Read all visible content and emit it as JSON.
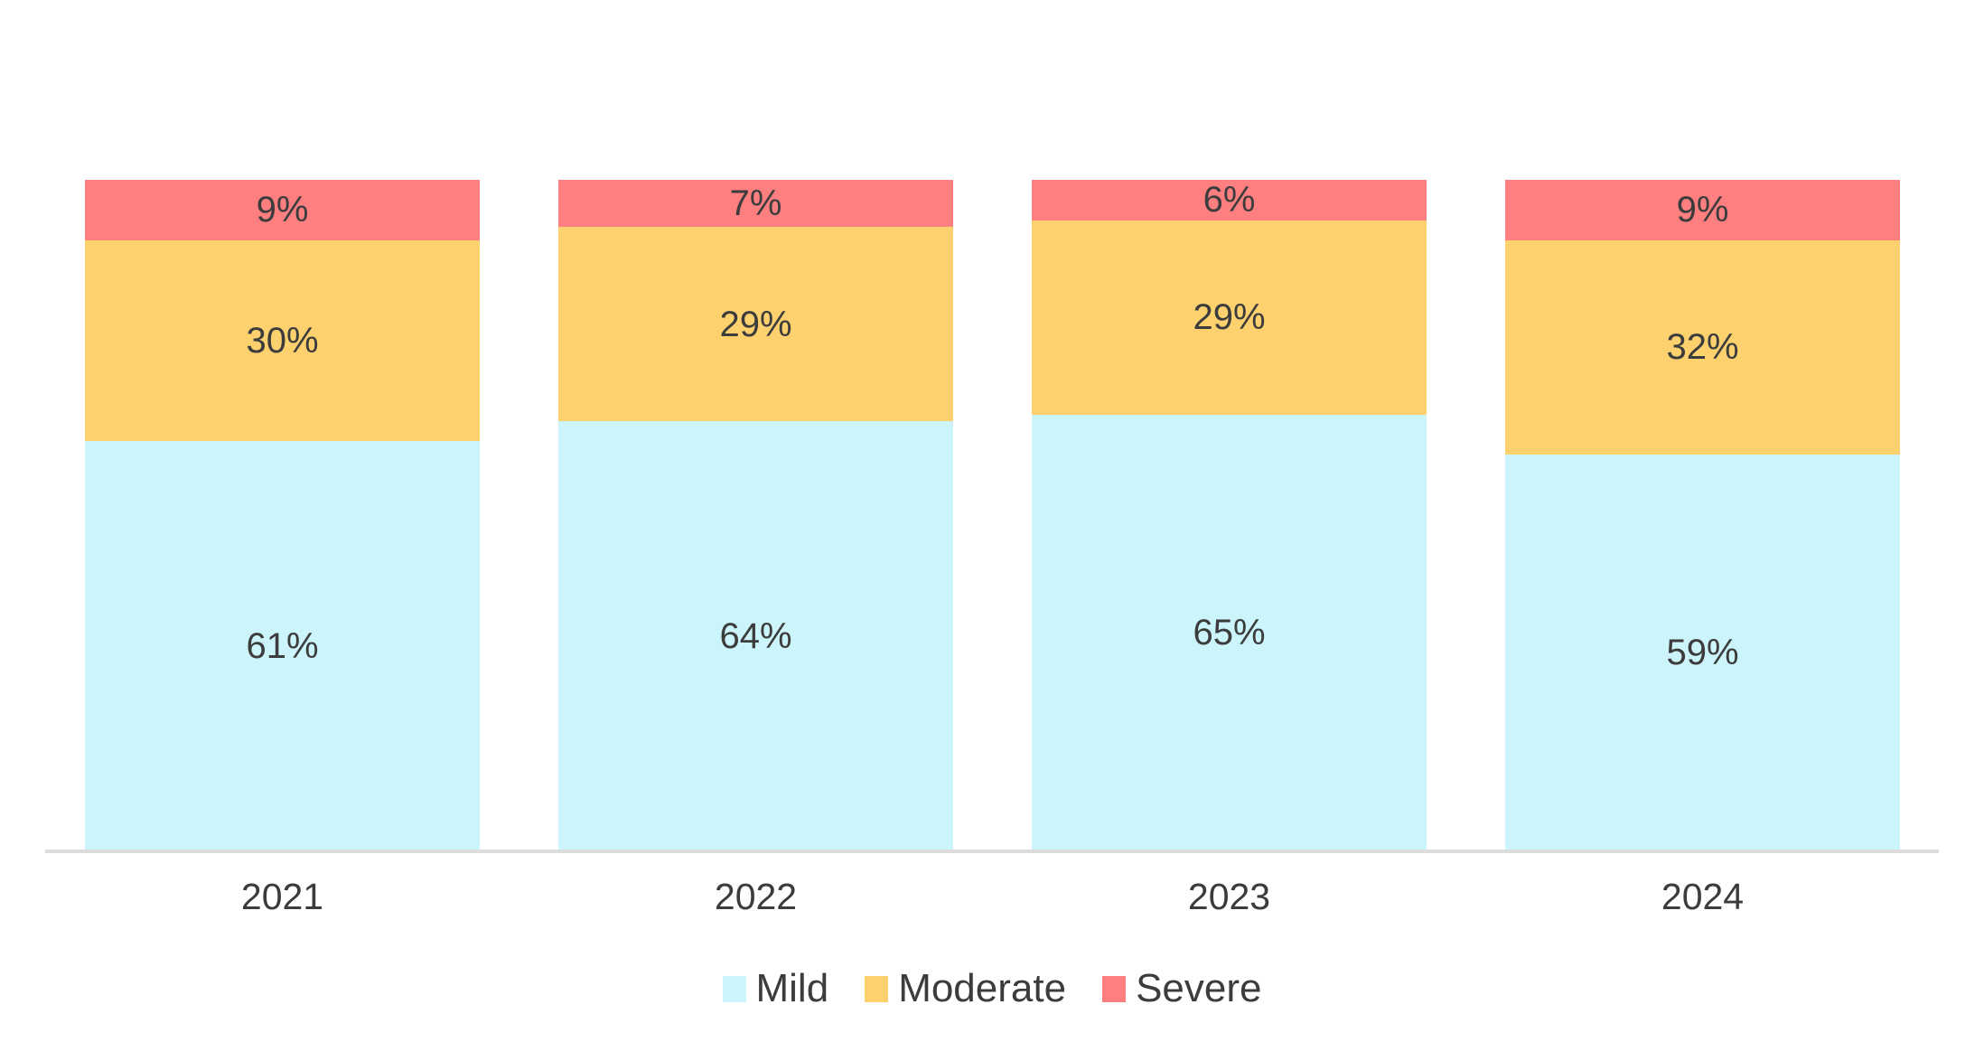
{
  "chart_data": {
    "type": "bar",
    "subtype": "100-percent-stacked-column",
    "title": "",
    "categories": [
      "2021",
      "2022",
      "2023",
      "2024"
    ],
    "series": [
      {
        "name": "Mild",
        "color": "#CCF4FB",
        "values": [
          61,
          64,
          65,
          59
        ]
      },
      {
        "name": "Moderate",
        "color": "#FCD16E",
        "values": [
          30,
          29,
          29,
          32
        ]
      },
      {
        "name": "Severe",
        "color": "#FD7F80",
        "values": [
          9,
          7,
          6,
          9
        ]
      }
    ],
    "stack_order_bottom_to_top": [
      "Mild",
      "Moderate",
      "Severe"
    ],
    "data_labels": {
      "format": "{value}%",
      "color": "#3C3C3C"
    },
    "legend": {
      "position": "bottom",
      "entries": [
        "Mild",
        "Moderate",
        "Severe"
      ]
    },
    "xlabel": "",
    "ylabel": "",
    "y_axis": {
      "visible": false,
      "range": [
        0,
        100
      ]
    },
    "gridlines": false,
    "baseline_color": "#DCDCDC",
    "background": "#FFFFFF"
  }
}
